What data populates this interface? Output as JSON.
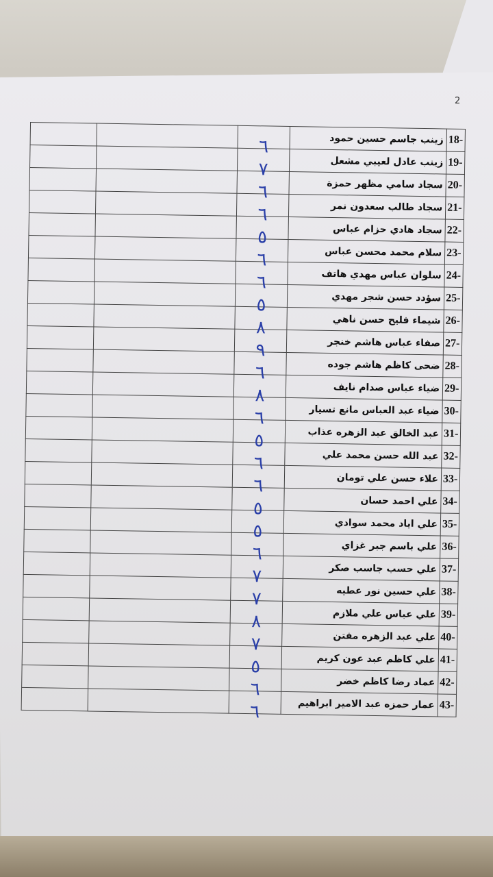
{
  "page_number": "2",
  "rows": [
    {
      "num": "18-",
      "name": "زينب جاسم حسين حمود",
      "grade": "٦"
    },
    {
      "num": "19-",
      "name": "زينب عادل لعيبي مشعل",
      "grade": "٧"
    },
    {
      "num": "20-",
      "name": "سجاد سامي مظهر حمزة",
      "grade": "٦"
    },
    {
      "num": "21-",
      "name": "سجاد طالب سعدون نمر",
      "grade": "٦"
    },
    {
      "num": "22-",
      "name": "سجاد هادي حزام عباس",
      "grade": "٥"
    },
    {
      "num": "23-",
      "name": "سلام محمد محسن عباس",
      "grade": "٦"
    },
    {
      "num": "24-",
      "name": "سلوان عباس مهدي هاتف",
      "grade": "٦"
    },
    {
      "num": "25-",
      "name": "سؤدد حسن شجر مهدي",
      "grade": "٥"
    },
    {
      "num": "26-",
      "name": "شيماء فليح حسن ناهي",
      "grade": "٨"
    },
    {
      "num": "27-",
      "name": "صفاء عباس هاشم خنجر",
      "grade": "٩"
    },
    {
      "num": "28-",
      "name": "ضحى كاظم هاشم جوده",
      "grade": "٦"
    },
    {
      "num": "29-",
      "name": "ضياء عباس صدام نايف",
      "grade": "٨"
    },
    {
      "num": "30-",
      "name": "ضياء عبد العباس مانع تسيار",
      "grade": "٦"
    },
    {
      "num": "31-",
      "name": "عبد الخالق عبد الزهره عذاب",
      "grade": "٥"
    },
    {
      "num": "32-",
      "name": "عبد الله حسن محمد علي",
      "grade": "٦"
    },
    {
      "num": "33-",
      "name": "علاء حسن علي تومان",
      "grade": "٦"
    },
    {
      "num": "34-",
      "name": "علي احمد حسان",
      "grade": "٥"
    },
    {
      "num": "35-",
      "name": "علي اياد محمد سوادي",
      "grade": "٥"
    },
    {
      "num": "36-",
      "name": "علي باسم جبر غزاي",
      "grade": "٦"
    },
    {
      "num": "37-",
      "name": "علي حسب جاسب صكر",
      "grade": "٧"
    },
    {
      "num": "38-",
      "name": "علي حسين نور عطيه",
      "grade": "٧"
    },
    {
      "num": "39-",
      "name": "علي عباس علي ملازم",
      "grade": "٨"
    },
    {
      "num": "40-",
      "name": "علي عبد الزهره مفتن",
      "grade": "٧"
    },
    {
      "num": "41-",
      "name": "علي كاظم عبد عون كريم",
      "grade": "٥"
    },
    {
      "num": "42-",
      "name": "عماد رضا كاظم خضر",
      "grade": "٦"
    },
    {
      "num": "43-",
      "name": "عمار حمزه عبد الامير ابراهيم",
      "grade": "٦"
    }
  ],
  "colors": {
    "ink": "#2a3fa8",
    "text": "#111111"
  }
}
